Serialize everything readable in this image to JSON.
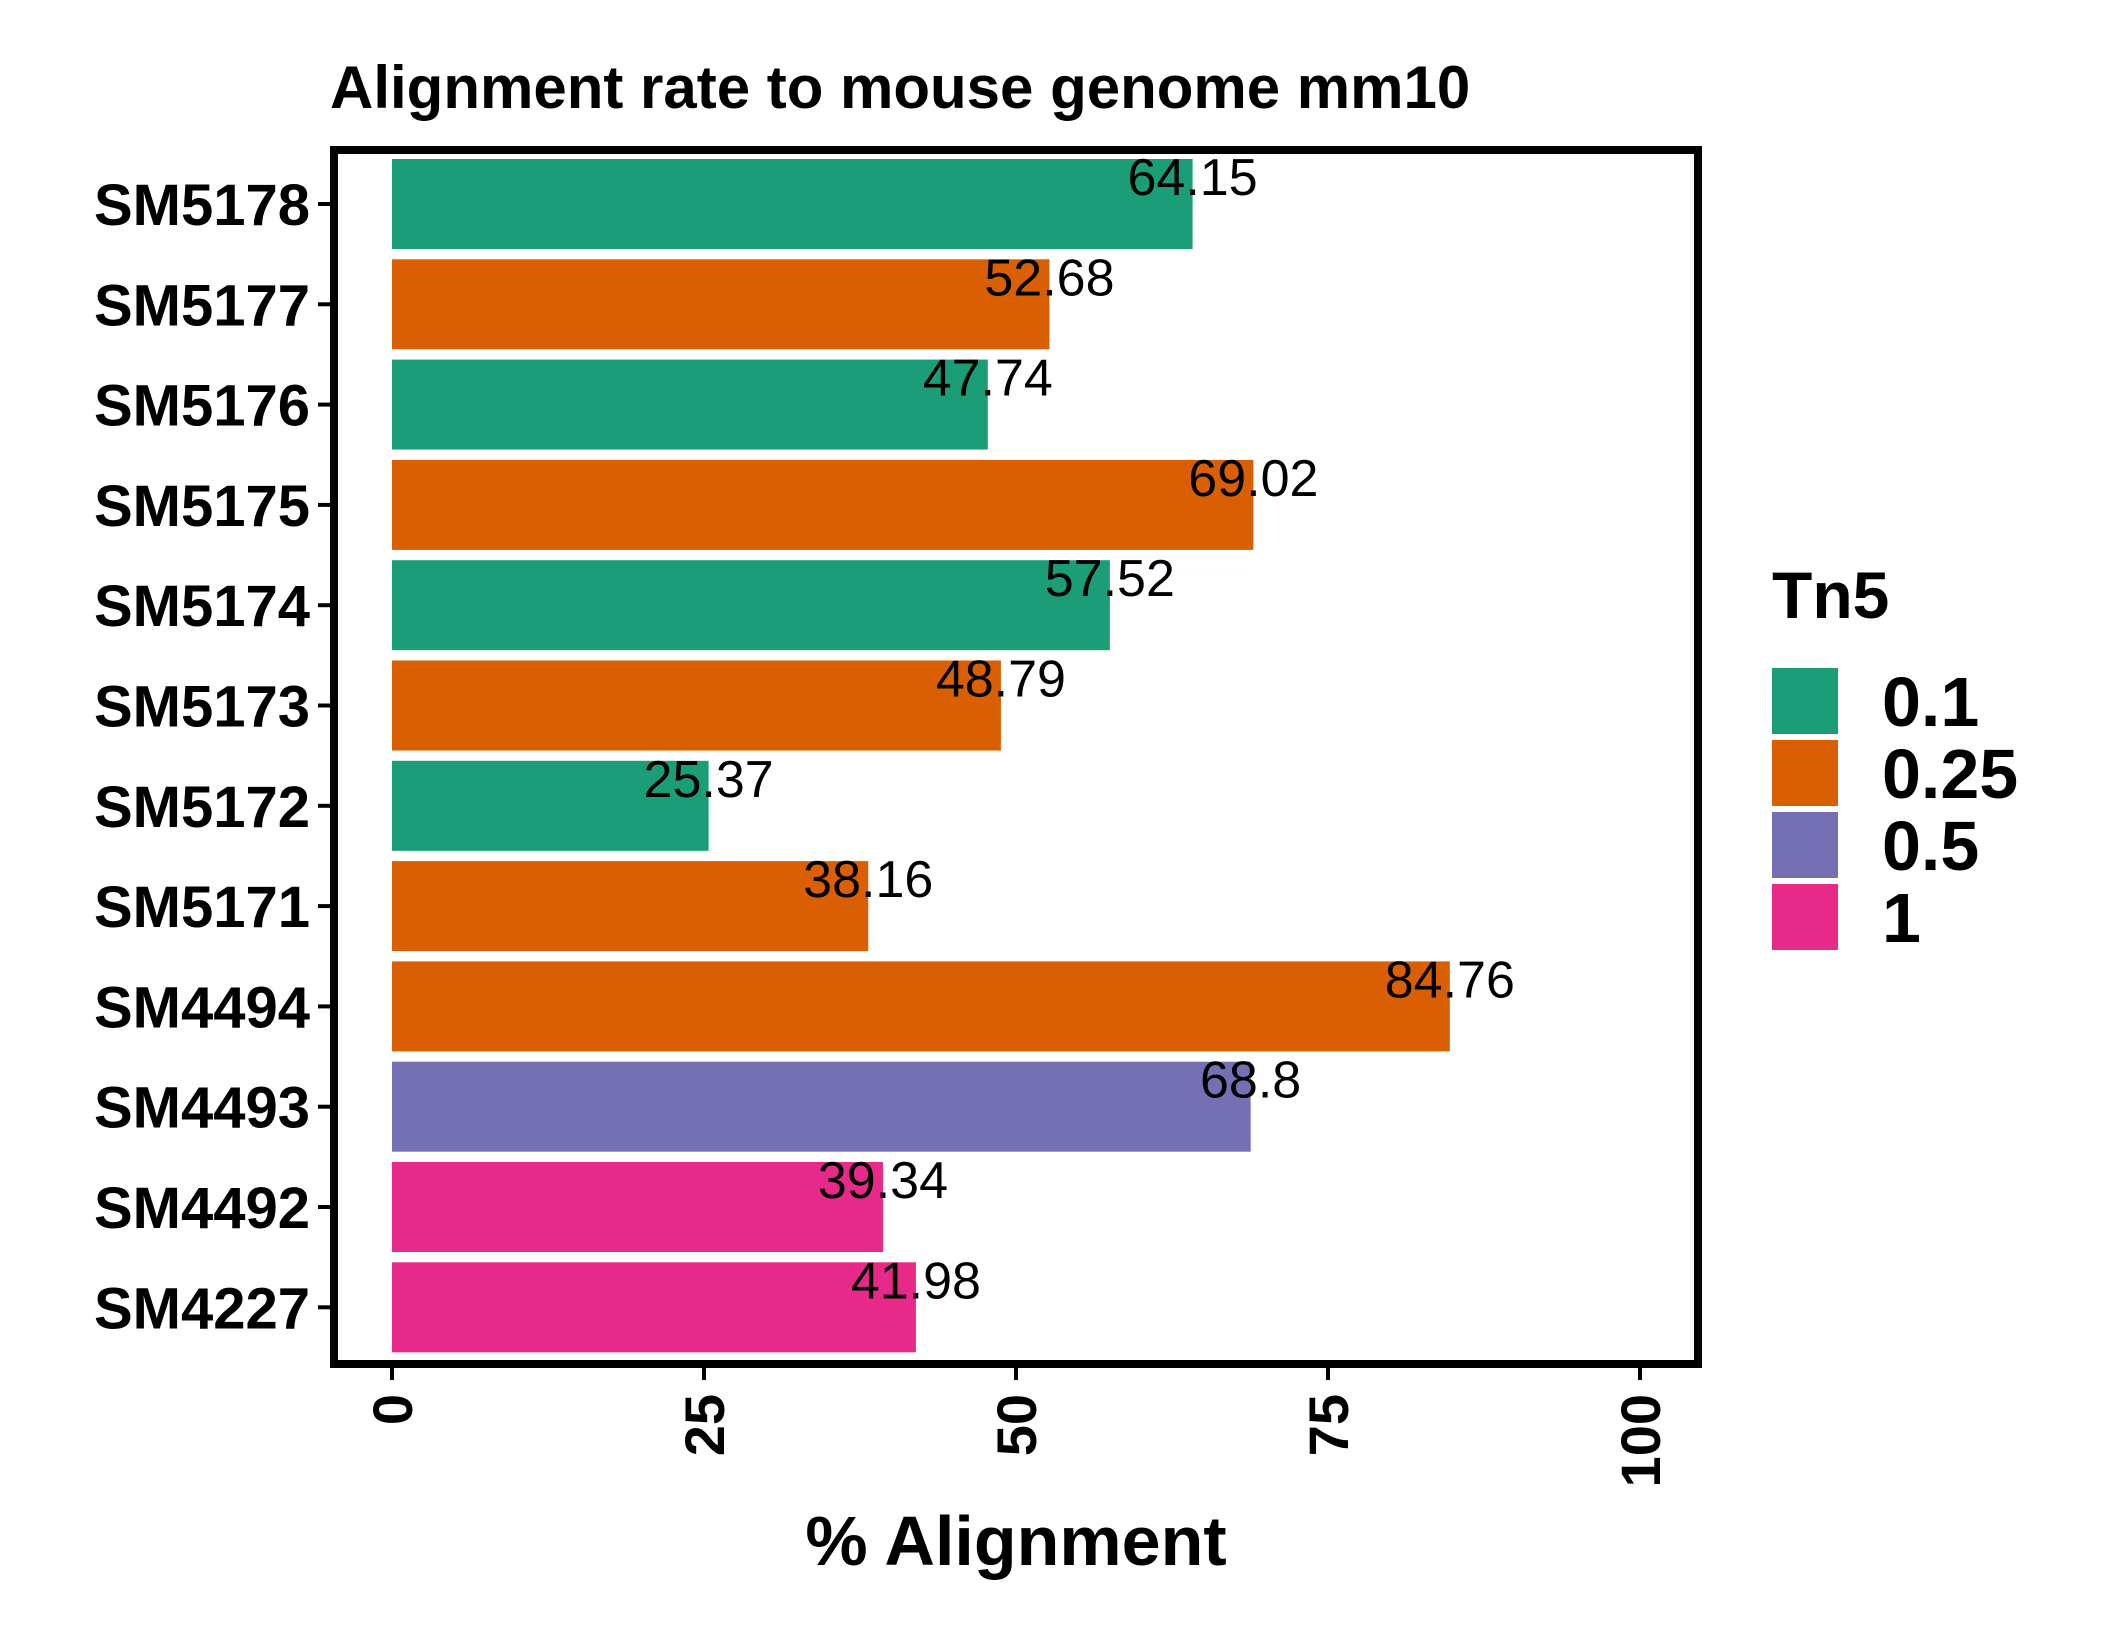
{
  "chart_data": {
    "type": "bar",
    "orientation": "horizontal",
    "title": "Alignment rate to mouse genome mm10",
    "xlabel": "% Alignment",
    "ylabel": "",
    "xlim": [
      0,
      100
    ],
    "xticks": [
      0,
      25,
      50,
      75,
      100
    ],
    "legend_title": "Tn5",
    "legend_position": "right",
    "groups": [
      {
        "label": "0.1",
        "color": "#1b9e77"
      },
      {
        "label": "0.25",
        "color": "#d95f02"
      },
      {
        "label": "0.5",
        "color": "#7570b3"
      },
      {
        "label": "1",
        "color": "#e7298a"
      }
    ],
    "bars": [
      {
        "category": "SM5178",
        "value": 64.15,
        "label": "64.15",
        "group": "0.1"
      },
      {
        "category": "SM5177",
        "value": 52.68,
        "label": "52.68",
        "group": "0.25"
      },
      {
        "category": "SM5176",
        "value": 47.74,
        "label": "47.74",
        "group": "0.1"
      },
      {
        "category": "SM5175",
        "value": 69.02,
        "label": "69.02",
        "group": "0.25"
      },
      {
        "category": "SM5174",
        "value": 57.52,
        "label": "57.52",
        "group": "0.1"
      },
      {
        "category": "SM5173",
        "value": 48.79,
        "label": "48.79",
        "group": "0.25"
      },
      {
        "category": "SM5172",
        "value": 25.37,
        "label": "25.37",
        "group": "0.1"
      },
      {
        "category": "SM5171",
        "value": 38.16,
        "label": "38.16",
        "group": "0.25"
      },
      {
        "category": "SM4494",
        "value": 84.76,
        "label": "84.76",
        "group": "0.25"
      },
      {
        "category": "SM4493",
        "value": 68.8,
        "label": "68.8",
        "group": "0.5"
      },
      {
        "category": "SM4492",
        "value": 39.34,
        "label": "39.34",
        "group": "1"
      },
      {
        "category": "SM4227",
        "value": 41.98,
        "label": "41.98",
        "group": "1"
      }
    ]
  }
}
